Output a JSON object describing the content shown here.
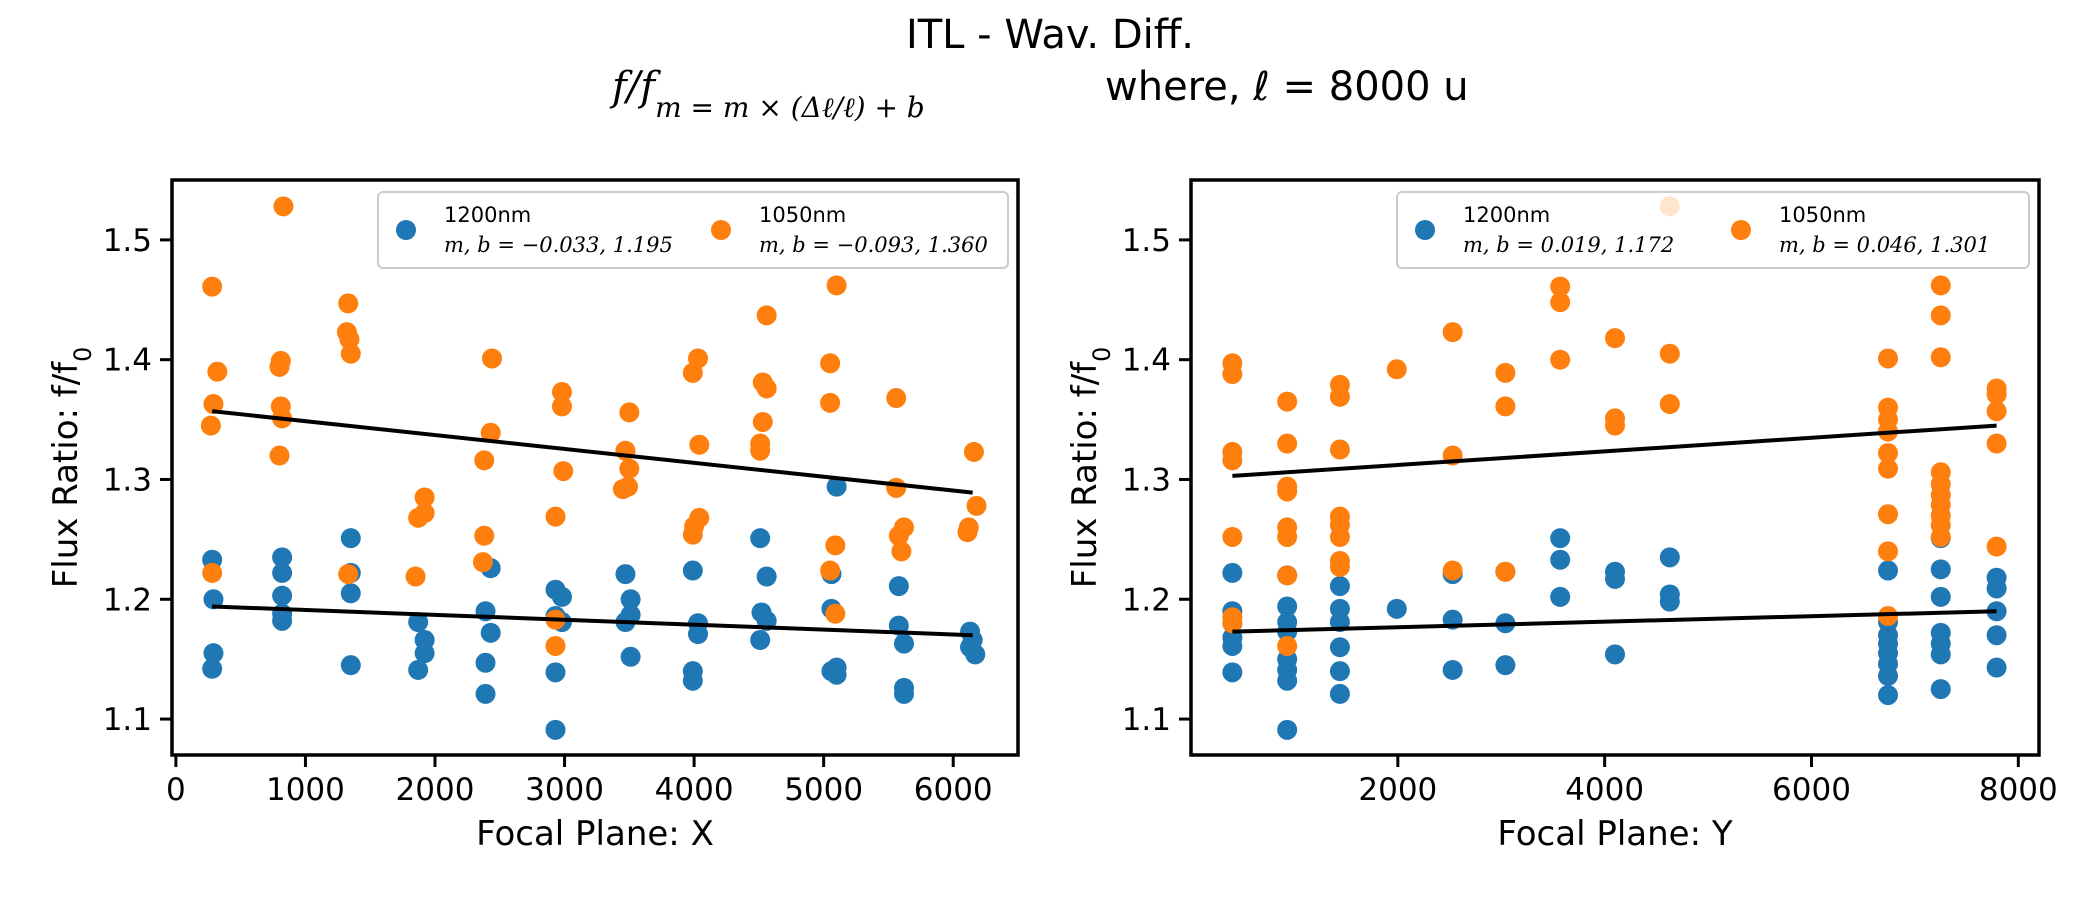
{
  "figure": {
    "title_line1": "ITL - Wav. Diff.",
    "title_line2_formula": "f/f_m = m × (Δℓ/ℓ) + b",
    "title_line2_suffix": "where, ℓ = 8000 u"
  },
  "chart_data": [
    {
      "type": "scatter",
      "xlabel": "Focal Plane: X",
      "ylabel": "Flux Ratio: f/f_0",
      "xlim": [
        -30,
        6500
      ],
      "ylim": [
        1.07,
        1.55
      ],
      "xticks": [
        0,
        1000,
        2000,
        3000,
        4000,
        5000,
        6000
      ],
      "yticks": [
        1.1,
        1.2,
        1.3,
        1.4,
        1.5
      ],
      "grid": false,
      "legend_position": "upper-right",
      "series": [
        {
          "name": "1200nm",
          "fit_label": "m, b = −0.033, 1.195",
          "color": "#1f77b4",
          "points": [
            [
              280,
              1.233
            ],
            [
              290,
              1.2
            ],
            [
              290,
              1.155
            ],
            [
              280,
              1.142
            ],
            [
              820,
              1.235
            ],
            [
              820,
              1.222
            ],
            [
              820,
              1.203
            ],
            [
              820,
              1.188
            ],
            [
              820,
              1.182
            ],
            [
              1350,
              1.251
            ],
            [
              1350,
              1.222
            ],
            [
              1350,
              1.205
            ],
            [
              1350,
              1.145
            ],
            [
              1870,
              1.181
            ],
            [
              1920,
              1.166
            ],
            [
              1920,
              1.155
            ],
            [
              1870,
              1.141
            ],
            [
              2390,
              1.19
            ],
            [
              2430,
              1.226
            ],
            [
              2430,
              1.172
            ],
            [
              2390,
              1.147
            ],
            [
              2390,
              1.121
            ],
            [
              2930,
              1.208
            ],
            [
              2980,
              1.202
            ],
            [
              2930,
              1.186
            ],
            [
              2980,
              1.181
            ],
            [
              2930,
              1.139
            ],
            [
              2930,
              1.091
            ],
            [
              3470,
              1.221
            ],
            [
              3510,
              1.2
            ],
            [
              3510,
              1.187
            ],
            [
              3470,
              1.181
            ],
            [
              3510,
              1.152
            ],
            [
              3990,
              1.224
            ],
            [
              4030,
              1.18
            ],
            [
              4030,
              1.171
            ],
            [
              3990,
              1.14
            ],
            [
              3990,
              1.132
            ],
            [
              4510,
              1.251
            ],
            [
              4560,
              1.219
            ],
            [
              4520,
              1.189
            ],
            [
              4560,
              1.182
            ],
            [
              4510,
              1.166
            ],
            [
              5060,
              1.221
            ],
            [
              5060,
              1.192
            ],
            [
              5100,
              1.294
            ],
            [
              5060,
              1.14
            ],
            [
              5100,
              1.143
            ],
            [
              5100,
              1.137
            ],
            [
              5580,
              1.211
            ],
            [
              5580,
              1.178
            ],
            [
              5620,
              1.163
            ],
            [
              5620,
              1.126
            ],
            [
              5620,
              1.121
            ],
            [
              6130,
              1.173
            ],
            [
              6150,
              1.166
            ],
            [
              6130,
              1.16
            ],
            [
              6170,
              1.154
            ]
          ]
        },
        {
          "name": "1050nm",
          "fit_label": "m, b = −0.093, 1.360",
          "color": "#ff7f0e",
          "points": [
            [
              280,
              1.461
            ],
            [
              320,
              1.39
            ],
            [
              290,
              1.363
            ],
            [
              270,
              1.345
            ],
            [
              280,
              1.222
            ],
            [
              830,
              1.528
            ],
            [
              810,
              1.399
            ],
            [
              800,
              1.394
            ],
            [
              810,
              1.361
            ],
            [
              820,
              1.351
            ],
            [
              800,
              1.32
            ],
            [
              1330,
              1.447
            ],
            [
              1320,
              1.423
            ],
            [
              1340,
              1.417
            ],
            [
              1350,
              1.405
            ],
            [
              1330,
              1.221
            ],
            [
              1870,
              1.268
            ],
            [
              1920,
              1.285
            ],
            [
              1920,
              1.272
            ],
            [
              1850,
              1.219
            ],
            [
              2440,
              1.401
            ],
            [
              2430,
              1.339
            ],
            [
              2380,
              1.316
            ],
            [
              2380,
              1.253
            ],
            [
              2370,
              1.231
            ],
            [
              2980,
              1.373
            ],
            [
              2980,
              1.361
            ],
            [
              2990,
              1.307
            ],
            [
              2930,
              1.269
            ],
            [
              2930,
              1.183
            ],
            [
              2930,
              1.161
            ],
            [
              3500,
              1.356
            ],
            [
              3470,
              1.324
            ],
            [
              3500,
              1.309
            ],
            [
              3490,
              1.294
            ],
            [
              3450,
              1.292
            ],
            [
              4030,
              1.401
            ],
            [
              3990,
              1.389
            ],
            [
              4040,
              1.329
            ],
            [
              4040,
              1.268
            ],
            [
              4000,
              1.261
            ],
            [
              3990,
              1.254
            ],
            [
              4560,
              1.437
            ],
            [
              4530,
              1.381
            ],
            [
              4560,
              1.376
            ],
            [
              4530,
              1.348
            ],
            [
              4510,
              1.33
            ],
            [
              4510,
              1.324
            ],
            [
              5100,
              1.462
            ],
            [
              5050,
              1.397
            ],
            [
              5050,
              1.364
            ],
            [
              5090,
              1.245
            ],
            [
              5050,
              1.224
            ],
            [
              5090,
              1.188
            ],
            [
              5560,
              1.368
            ],
            [
              5560,
              1.293
            ],
            [
              5620,
              1.26
            ],
            [
              5580,
              1.253
            ],
            [
              5600,
              1.24
            ],
            [
              6160,
              1.323
            ],
            [
              6180,
              1.278
            ],
            [
              6120,
              1.26
            ],
            [
              6110,
              1.256
            ]
          ]
        }
      ],
      "fit_lines": [
        {
          "series": "1200nm",
          "x": [
            280,
            6150
          ],
          "y": [
            1.194,
            1.17
          ]
        },
        {
          "series": "1050nm",
          "x": [
            280,
            6150
          ],
          "y": [
            1.357,
            1.289
          ]
        }
      ]
    },
    {
      "type": "scatter",
      "xlabel": "Focal Plane: Y",
      "ylabel": "Flux Ratio: f/f_0",
      "xlim": [
        0,
        8200
      ],
      "ylim": [
        1.07,
        1.55
      ],
      "xticks": [
        2000,
        4000,
        6000,
        8000
      ],
      "yticks": [
        1.1,
        1.2,
        1.3,
        1.4,
        1.5
      ],
      "grid": false,
      "legend_position": "upper-right",
      "series": [
        {
          "name": "1200nm",
          "fit_label": "m, b = 0.019, 1.172",
          "color": "#1f77b4",
          "points": [
            [
              400,
              1.222
            ],
            [
              400,
              1.19
            ],
            [
              400,
              1.18
            ],
            [
              400,
              1.168
            ],
            [
              400,
              1.161
            ],
            [
              400,
              1.139
            ],
            [
              930,
              1.22
            ],
            [
              930,
              1.194
            ],
            [
              930,
              1.181
            ],
            [
              930,
              1.173
            ],
            [
              930,
              1.15
            ],
            [
              930,
              1.141
            ],
            [
              930,
              1.132
            ],
            [
              930,
              1.091
            ],
            [
              1440,
              1.211
            ],
            [
              1440,
              1.192
            ],
            [
              1440,
              1.181
            ],
            [
              1440,
              1.16
            ],
            [
              1440,
              1.14
            ],
            [
              1440,
              1.121
            ],
            [
              1990,
              1.192
            ],
            [
              2530,
              1.221
            ],
            [
              2530,
              1.183
            ],
            [
              2530,
              1.141
            ],
            [
              3040,
              1.223
            ],
            [
              3040,
              1.18
            ],
            [
              3040,
              1.145
            ],
            [
              3570,
              1.251
            ],
            [
              3570,
              1.233
            ],
            [
              3570,
              1.202
            ],
            [
              4100,
              1.223
            ],
            [
              4100,
              1.217
            ],
            [
              4100,
              1.154
            ],
            [
              4630,
              1.235
            ],
            [
              4630,
              1.204
            ],
            [
              4630,
              1.198
            ],
            [
              6740,
              1.224
            ],
            [
              6740,
              1.181
            ],
            [
              6740,
              1.17
            ],
            [
              6740,
              1.163
            ],
            [
              6740,
              1.155
            ],
            [
              6740,
              1.146
            ],
            [
              6740,
              1.136
            ],
            [
              6740,
              1.12
            ],
            [
              7250,
              1.251
            ],
            [
              7250,
              1.225
            ],
            [
              7250,
              1.202
            ],
            [
              7250,
              1.172
            ],
            [
              7250,
              1.163
            ],
            [
              7250,
              1.154
            ],
            [
              7250,
              1.125
            ],
            [
              7790,
              1.218
            ],
            [
              7790,
              1.209
            ],
            [
              7790,
              1.19
            ],
            [
              7790,
              1.17
            ],
            [
              7790,
              1.143
            ]
          ]
        },
        {
          "name": "1050nm",
          "fit_label": "m, b = 0.046, 1.301",
          "color": "#ff7f0e",
          "points": [
            [
              400,
              1.397
            ],
            [
              400,
              1.388
            ],
            [
              400,
              1.323
            ],
            [
              400,
              1.316
            ],
            [
              400,
              1.252
            ],
            [
              400,
              1.185
            ],
            [
              400,
              1.18
            ],
            [
              930,
              1.365
            ],
            [
              930,
              1.33
            ],
            [
              930,
              1.294
            ],
            [
              930,
              1.29
            ],
            [
              930,
              1.26
            ],
            [
              930,
              1.252
            ],
            [
              930,
              1.22
            ],
            [
              930,
              1.161
            ],
            [
              1440,
              1.379
            ],
            [
              1440,
              1.369
            ],
            [
              1440,
              1.325
            ],
            [
              1440,
              1.269
            ],
            [
              1440,
              1.262
            ],
            [
              1440,
              1.252
            ],
            [
              1440,
              1.232
            ],
            [
              1440,
              1.227
            ],
            [
              1990,
              1.392
            ],
            [
              2530,
              1.423
            ],
            [
              2530,
              1.32
            ],
            [
              2530,
              1.224
            ],
            [
              3040,
              1.389
            ],
            [
              3040,
              1.361
            ],
            [
              3040,
              1.223
            ],
            [
              3570,
              1.461
            ],
            [
              3570,
              1.448
            ],
            [
              3570,
              1.4
            ],
            [
              4100,
              1.418
            ],
            [
              4100,
              1.351
            ],
            [
              4100,
              1.345
            ],
            [
              4630,
              1.528
            ],
            [
              4630,
              1.405
            ],
            [
              4630,
              1.363
            ],
            [
              6740,
              1.401
            ],
            [
              6740,
              1.36
            ],
            [
              6740,
              1.35
            ],
            [
              6740,
              1.34
            ],
            [
              6740,
              1.322
            ],
            [
              6740,
              1.309
            ],
            [
              6740,
              1.271
            ],
            [
              6740,
              1.24
            ],
            [
              6740,
              1.186
            ],
            [
              7250,
              1.462
            ],
            [
              7250,
              1.437
            ],
            [
              7250,
              1.402
            ],
            [
              7250,
              1.306
            ],
            [
              7250,
              1.296
            ],
            [
              7250,
              1.287
            ],
            [
              7250,
              1.279
            ],
            [
              7250,
              1.27
            ],
            [
              7250,
              1.262
            ],
            [
              7250,
              1.252
            ],
            [
              7790,
              1.376
            ],
            [
              7790,
              1.371
            ],
            [
              7790,
              1.357
            ],
            [
              7790,
              1.33
            ],
            [
              7790,
              1.244
            ]
          ]
        }
      ],
      "fit_lines": [
        {
          "series": "1200nm",
          "x": [
            400,
            7790
          ],
          "y": [
            1.173,
            1.19
          ]
        },
        {
          "series": "1050nm",
          "x": [
            400,
            7790
          ],
          "y": [
            1.303,
            1.345
          ]
        }
      ]
    }
  ]
}
